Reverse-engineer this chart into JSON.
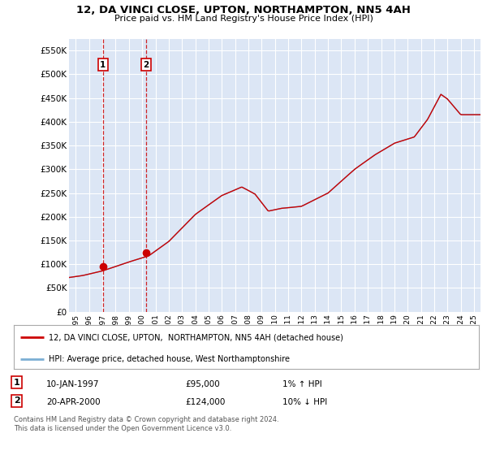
{
  "title": "12, DA VINCI CLOSE, UPTON, NORTHAMPTON, NN5 4AH",
  "subtitle": "Price paid vs. HM Land Registry's House Price Index (HPI)",
  "ylim": [
    0,
    575000
  ],
  "yticks": [
    0,
    50000,
    100000,
    150000,
    200000,
    250000,
    300000,
    350000,
    400000,
    450000,
    500000,
    550000
  ],
  "ytick_labels": [
    "£0",
    "£50K",
    "£100K",
    "£150K",
    "£200K",
    "£250K",
    "£300K",
    "£350K",
    "£400K",
    "£450K",
    "£500K",
    "£550K"
  ],
  "bg_color": "#dce6f5",
  "grid_color": "#ffffff",
  "line_red_color": "#cc0000",
  "line_blue_color": "#7bafd4",
  "marker_color": "#cc0000",
  "vline_color": "#cc0000",
  "point1": {
    "x_year": 1997.04,
    "y": 95000,
    "label": "1",
    "date": "10-JAN-1997",
    "price": "£95,000",
    "hpi_change": "1% ↑ HPI"
  },
  "point2": {
    "x_year": 2000.29,
    "y": 124000,
    "label": "2",
    "date": "20-APR-2000",
    "price": "£124,000",
    "hpi_change": "10% ↓ HPI"
  },
  "legend_line1": "12, DA VINCI CLOSE, UPTON,  NORTHAMPTON, NN5 4AH (detached house)",
  "legend_line2": "HPI: Average price, detached house, West Northamptonshire",
  "footer": "Contains HM Land Registry data © Crown copyright and database right 2024.\nThis data is licensed under the Open Government Licence v3.0.",
  "xlim_start": 1994.5,
  "xlim_end": 2025.5,
  "hpi_anchors_y": [
    1994.5,
    1995.5,
    1997.0,
    1999.0,
    2000.5,
    2002.0,
    2004.0,
    2006.0,
    2007.5,
    2008.5,
    2009.5,
    2010.5,
    2012.0,
    2014.0,
    2016.0,
    2017.5,
    2019.0,
    2020.5,
    2021.5,
    2022.5,
    2023.0,
    2024.0,
    2025.5
  ],
  "hpi_anchors_v": [
    72000,
    76000,
    86000,
    105000,
    118000,
    148000,
    205000,
    245000,
    263000,
    248000,
    212000,
    218000,
    222000,
    250000,
    300000,
    330000,
    355000,
    368000,
    405000,
    458000,
    448000,
    415000,
    415000
  ]
}
